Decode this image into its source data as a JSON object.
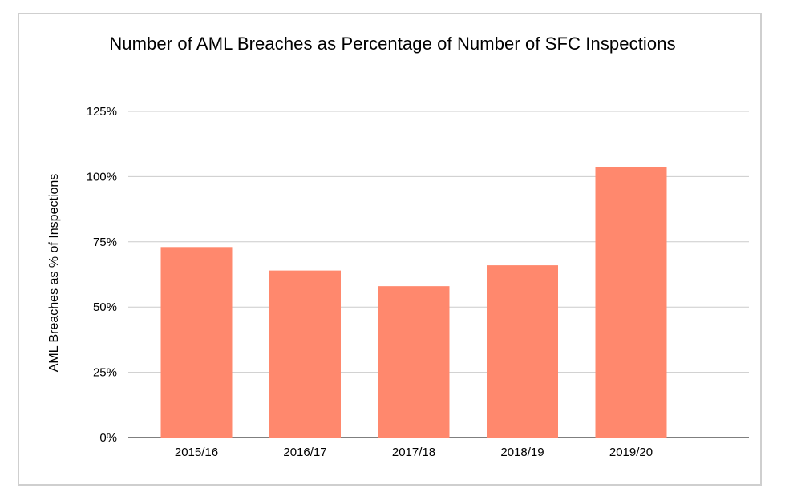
{
  "chart_data": {
    "type": "bar",
    "title": "Number of AML Breaches as Percentage of Number of SFC Inspections",
    "xlabel": "",
    "ylabel": "AML Breaches as % of Inspections",
    "categories": [
      "2015/16",
      "2016/17",
      "2017/18",
      "2018/19",
      "2019/20"
    ],
    "values": [
      73,
      64,
      58,
      66,
      103.5
    ],
    "value_unit": "%",
    "ylim": [
      0,
      125
    ],
    "yticks": [
      0,
      25,
      50,
      75,
      100,
      125
    ],
    "ytick_labels": [
      "0%",
      "25%",
      "50%",
      "75%",
      "100%",
      "125%"
    ],
    "grid": true,
    "legend": "none",
    "bar_color": "#ff886d",
    "grid_color": "#cccccc",
    "axis_color": "#333333"
  }
}
